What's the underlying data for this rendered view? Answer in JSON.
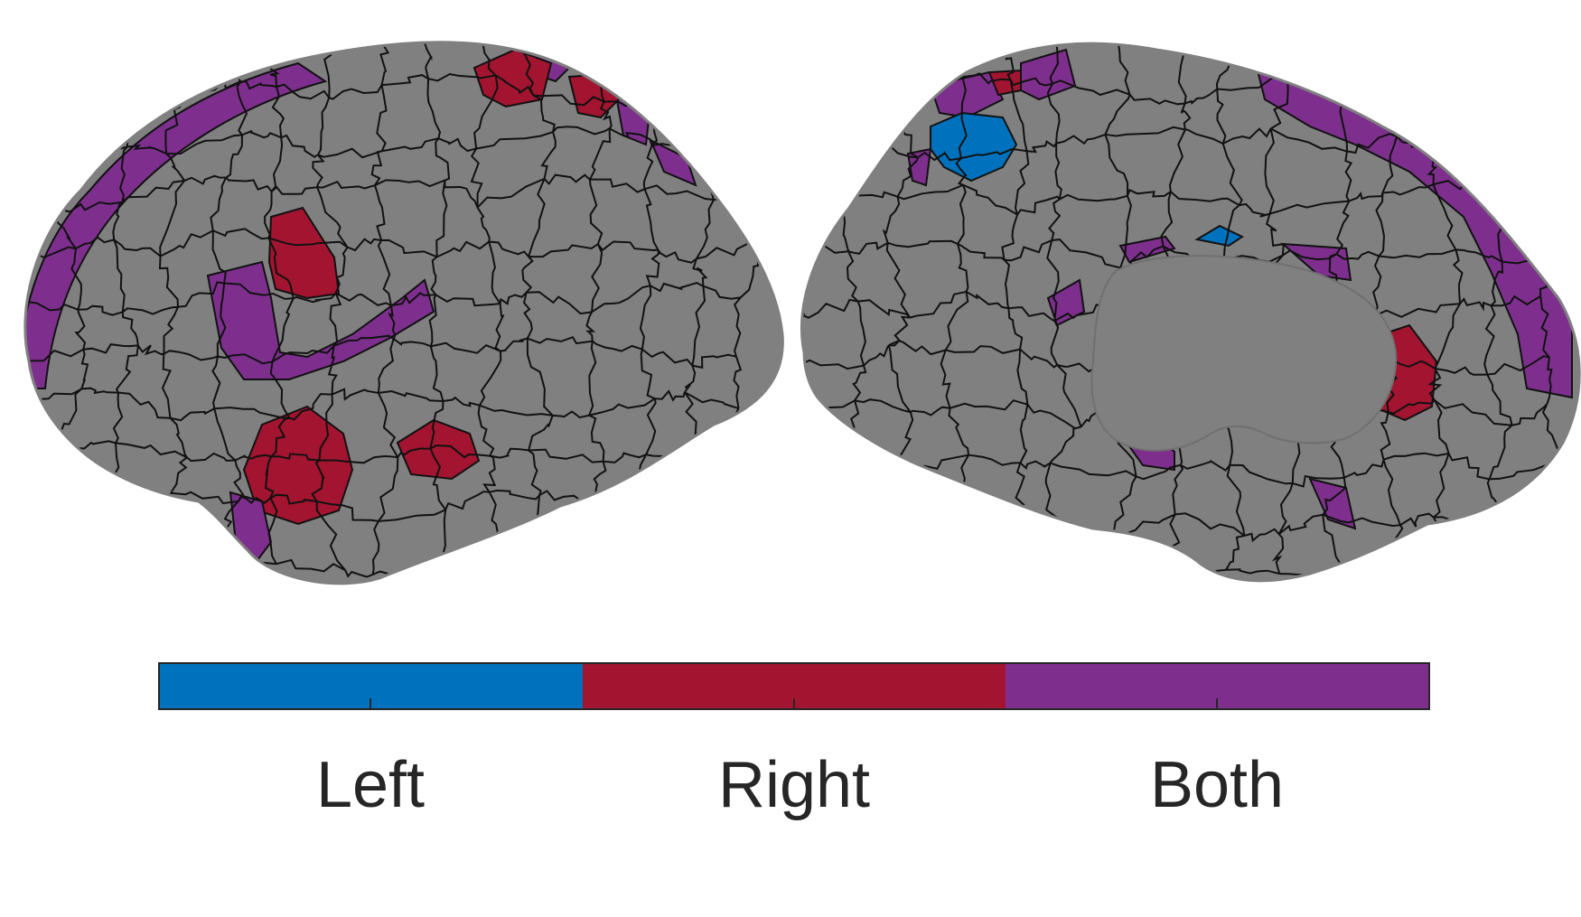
{
  "figure": {
    "views": [
      "lateral",
      "medial"
    ],
    "surface_color": "#808080",
    "outline_color": "#111111"
  },
  "colorbar": {
    "segments": [
      {
        "label": "Left",
        "color": "#0072bd"
      },
      {
        "label": "Right",
        "color": "#a2142f"
      },
      {
        "label": "Both",
        "color": "#7e2f8e"
      }
    ]
  }
}
